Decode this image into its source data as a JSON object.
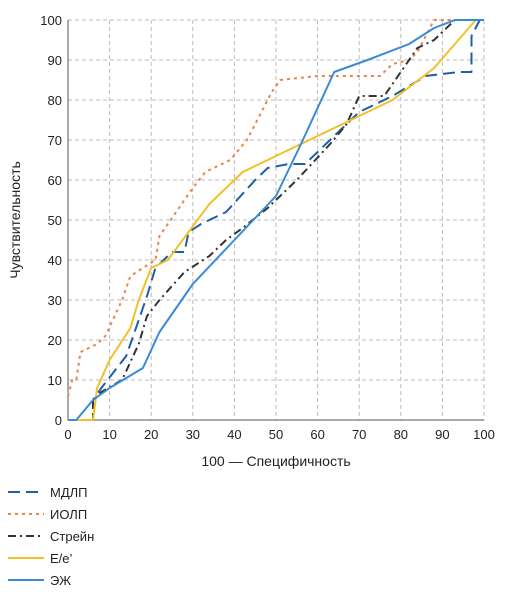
{
  "chart_data": {
    "type": "line",
    "xlabel": "100 — Специфичность",
    "ylabel": "Чувствительность",
    "xlim": [
      0,
      100
    ],
    "ylim": [
      0,
      100
    ],
    "x_ticks": [
      0,
      10,
      20,
      30,
      40,
      50,
      60,
      70,
      80,
      90,
      100
    ],
    "y_ticks": [
      0,
      10,
      20,
      30,
      40,
      50,
      60,
      70,
      80,
      90,
      100
    ],
    "grid": "dashed-both",
    "legend_position": "bottom-left",
    "series": [
      {
        "name": "МДЛП",
        "color": "#1f5fa8",
        "dash": "long-dash",
        "points": [
          [
            0,
            0
          ],
          [
            6,
            0
          ],
          [
            6,
            5
          ],
          [
            8,
            8
          ],
          [
            14,
            16
          ],
          [
            16,
            22
          ],
          [
            19,
            31
          ],
          [
            21,
            38
          ],
          [
            25,
            42
          ],
          [
            28,
            42
          ],
          [
            29,
            47
          ],
          [
            32,
            49
          ],
          [
            38,
            52
          ],
          [
            45,
            60
          ],
          [
            48,
            63
          ],
          [
            53,
            64
          ],
          [
            57,
            64
          ],
          [
            64,
            71
          ],
          [
            70,
            77
          ],
          [
            78,
            81
          ],
          [
            86,
            86
          ],
          [
            94,
            87
          ],
          [
            97,
            87
          ],
          [
            97,
            96
          ],
          [
            99,
            100
          ],
          [
            100,
            100
          ]
        ]
      },
      {
        "name": "ИОЛП",
        "color": "#e8854a",
        "dash": "dotted",
        "points": [
          [
            0,
            6
          ],
          [
            1,
            10
          ],
          [
            2,
            10
          ],
          [
            3,
            17
          ],
          [
            7,
            19
          ],
          [
            9,
            21
          ],
          [
            13,
            30
          ],
          [
            15,
            36
          ],
          [
            18,
            38
          ],
          [
            21,
            40
          ],
          [
            22,
            46
          ],
          [
            26,
            52
          ],
          [
            30,
            58
          ],
          [
            33,
            62
          ],
          [
            39,
            65
          ],
          [
            43,
            70
          ],
          [
            47,
            78
          ],
          [
            49,
            82
          ],
          [
            51,
            85
          ],
          [
            60,
            86
          ],
          [
            67,
            86
          ],
          [
            72,
            86
          ],
          [
            75,
            86
          ],
          [
            78,
            89
          ],
          [
            82,
            90
          ],
          [
            84,
            92
          ],
          [
            88,
            100
          ],
          [
            91,
            100
          ],
          [
            95,
            100
          ],
          [
            100,
            100
          ]
        ]
      },
      {
        "name": "Стрейн",
        "color": "#333333",
        "dash": "dash-dot",
        "points": [
          [
            0,
            0
          ],
          [
            6,
            0
          ],
          [
            6,
            5
          ],
          [
            8,
            7
          ],
          [
            13,
            10
          ],
          [
            17,
            19
          ],
          [
            19,
            26
          ],
          [
            22,
            30
          ],
          [
            28,
            37
          ],
          [
            34,
            41
          ],
          [
            38,
            45
          ],
          [
            42,
            48
          ],
          [
            48,
            53
          ],
          [
            55,
            60
          ],
          [
            63,
            69
          ],
          [
            67,
            74
          ],
          [
            70,
            81
          ],
          [
            76,
            81
          ],
          [
            80,
            87
          ],
          [
            84,
            93
          ],
          [
            88,
            95
          ],
          [
            90,
            97
          ],
          [
            93,
            100
          ],
          [
            100,
            100
          ]
        ]
      },
      {
        "name": "Е/е’",
        "color": "#f2c027",
        "dash": "solid",
        "points": [
          [
            0,
            0
          ],
          [
            6,
            0
          ],
          [
            7,
            8
          ],
          [
            10,
            15
          ],
          [
            15,
            23
          ],
          [
            17,
            30
          ],
          [
            20,
            38
          ],
          [
            24,
            40
          ],
          [
            29,
            47
          ],
          [
            34,
            54
          ],
          [
            42,
            62
          ],
          [
            48,
            65
          ],
          [
            58,
            70
          ],
          [
            68,
            75
          ],
          [
            78,
            80
          ],
          [
            88,
            88
          ],
          [
            98,
            100
          ],
          [
            100,
            100
          ]
        ]
      },
      {
        "name": "ЭЖ",
        "color": "#3b8ad4",
        "dash": "solid",
        "points": [
          [
            0,
            0
          ],
          [
            2,
            0
          ],
          [
            6,
            5
          ],
          [
            10,
            8
          ],
          [
            18,
            13
          ],
          [
            22,
            22
          ],
          [
            30,
            34
          ],
          [
            40,
            45
          ],
          [
            50,
            56
          ],
          [
            56,
            69
          ],
          [
            64,
            87
          ],
          [
            72,
            90
          ],
          [
            82,
            94
          ],
          [
            88,
            98
          ],
          [
            93,
            100
          ],
          [
            100,
            100
          ]
        ]
      }
    ]
  }
}
